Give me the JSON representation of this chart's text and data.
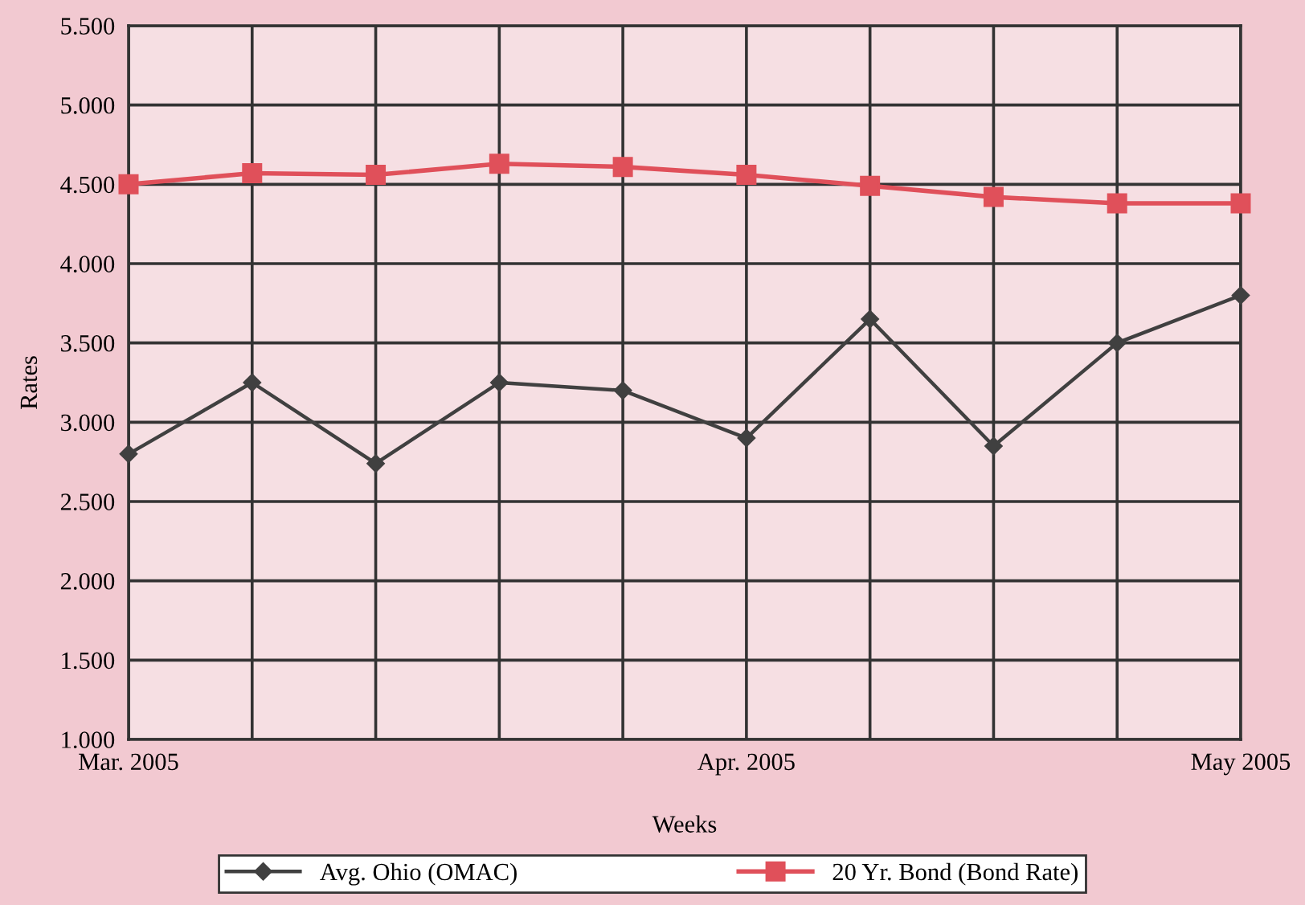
{
  "chart_data": {
    "type": "line",
    "xlabel": "Weeks",
    "ylabel": "Rates",
    "categories": [
      "Mar. 2005",
      null,
      null,
      null,
      null,
      "Apr. 2005",
      null,
      null,
      null,
      "May 2005"
    ],
    "series": [
      {
        "name": "Avg. Ohio (OMAC)",
        "color": "#404040",
        "marker": "diamond",
        "values": [
          2.8,
          3.25,
          2.74,
          3.25,
          3.2,
          2.9,
          3.65,
          2.85,
          3.5,
          3.8
        ]
      },
      {
        "name": "20 Yr. Bond (Bond Rate)",
        "color": "#e0505a",
        "marker": "square",
        "values": [
          4.5,
          4.57,
          4.56,
          4.63,
          4.61,
          4.56,
          4.49,
          4.42,
          4.38,
          4.38
        ]
      }
    ],
    "ylim": [
      1.0,
      5.5
    ],
    "yticks": [
      {
        "value": 1.0,
        "label": "1.000"
      },
      {
        "value": 1.5,
        "label": "1.500"
      },
      {
        "value": 2.0,
        "label": "2.000"
      },
      {
        "value": 2.5,
        "label": "2.500"
      },
      {
        "value": 3.0,
        "label": "3.000"
      },
      {
        "value": 3.5,
        "label": "3.500"
      },
      {
        "value": 4.0,
        "label": "4.000"
      },
      {
        "value": 4.5,
        "label": "4.500"
      },
      {
        "value": 5.0,
        "label": "5.000"
      },
      {
        "value": 5.5,
        "label": "5.500"
      }
    ],
    "grid": true,
    "legend": "bottom",
    "line_style": "solid"
  }
}
